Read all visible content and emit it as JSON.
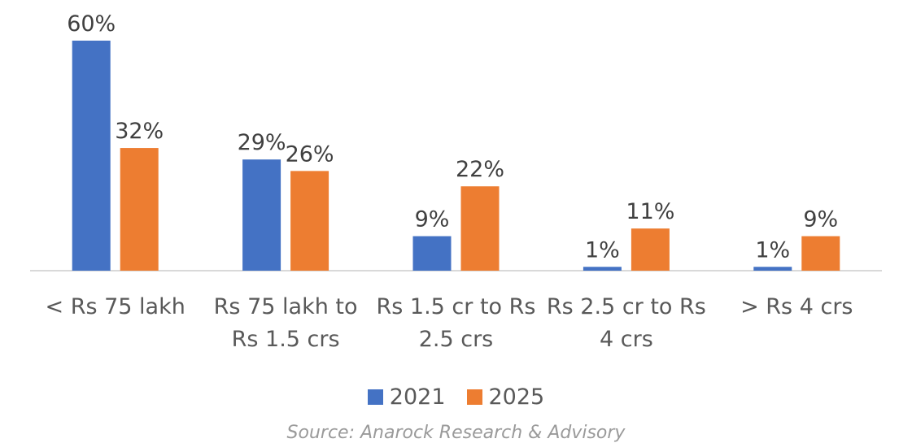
{
  "chart_data": {
    "type": "bar",
    "categories": [
      "< Rs 75 lakh",
      "Rs 75 lakh to Rs 1.5 crs",
      "Rs 1.5 cr to Rs 2.5 crs",
      "Rs 2.5 cr to Rs 4 crs",
      "> Rs 4 crs"
    ],
    "category_lines": [
      [
        "< Rs 75 lakh"
      ],
      [
        "Rs 75 lakh to",
        "Rs 1.5 crs"
      ],
      [
        "Rs 1.5 cr to Rs",
        "2.5 crs"
      ],
      [
        "Rs 2.5 cr to Rs",
        "4 crs"
      ],
      [
        "> Rs 4 crs"
      ]
    ],
    "series": [
      {
        "name": "2021",
        "values": [
          60,
          29,
          9,
          1,
          1
        ],
        "labels": [
          "60%",
          "29%",
          "9%",
          "1%",
          "1%"
        ],
        "color": "#4472C4"
      },
      {
        "name": "2025",
        "values": [
          32,
          26,
          22,
          11,
          9
        ],
        "labels": [
          "32%",
          "26%",
          "22%",
          "11%",
          "9%"
        ],
        "color": "#ED7D31"
      }
    ],
    "ylim": [
      0,
      60
    ],
    "grid": false,
    "legend": "bottom",
    "source": "Source: Anarock Research & Advisory"
  }
}
